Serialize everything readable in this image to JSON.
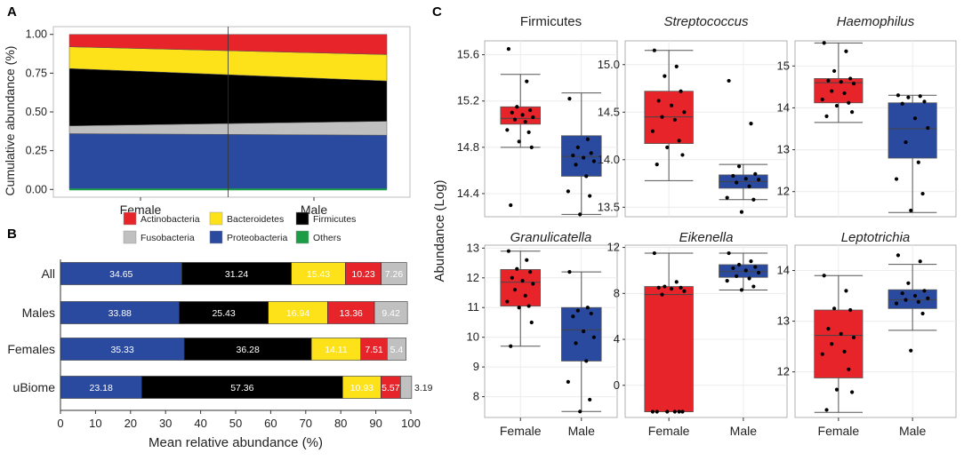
{
  "colors": {
    "actinobacteria": "#e8242b",
    "bacteroidetes": "#fde21a",
    "firmicutes": "#000000",
    "fusobacteria": "#c0c0c0",
    "proteobacteria": "#2a4aa0",
    "others": "#1c9c46",
    "female": "#e8242b",
    "male": "#2a4aa0"
  },
  "chart_data": [
    {
      "panel": "A",
      "type": "area",
      "panel_label": "A",
      "ylabel": "Cumulative abundance (%)",
      "xlabel": "",
      "categories": [
        "Female",
        "Male"
      ],
      "ylim": [
        -0.05,
        1.05
      ],
      "yticks": [
        "0.00",
        "0.25",
        "0.50",
        "0.75",
        "1.00"
      ],
      "ytick_values": [
        0,
        0.25,
        0.5,
        0.75,
        1.0
      ],
      "series": [
        {
          "name": "Others",
          "color_key": "others",
          "values": [
            0.0,
            0.0
          ]
        },
        {
          "name": "Proteobacteria",
          "color_key": "proteobacteria",
          "values": [
            0.36,
            0.35
          ]
        },
        {
          "name": "Fusobacteria",
          "color_key": "fusobacteria",
          "values": [
            0.05,
            0.09
          ]
        },
        {
          "name": "Firmicutes",
          "color_key": "firmicutes",
          "values": [
            0.37,
            0.26
          ]
        },
        {
          "name": "Bacteroidetes",
          "color_key": "bacteroidetes",
          "values": [
            0.14,
            0.17
          ]
        },
        {
          "name": "Actinobacteria",
          "color_key": "actinobacteria",
          "values": [
            0.08,
            0.13
          ]
        }
      ]
    },
    {
      "panel": "B",
      "type": "bar",
      "orientation": "horizontal-stacked",
      "panel_label": "B",
      "xlabel": "Mean relative abundance (%)",
      "xlim": [
        0,
        100
      ],
      "xticks": [
        "0",
        "10",
        "20",
        "30",
        "40",
        "50",
        "60",
        "70",
        "80",
        "90",
        "100"
      ],
      "legend": [
        {
          "label": "Actinobacteria",
          "color_key": "actinobacteria"
        },
        {
          "label": "Bacteroidetes",
          "color_key": "bacteroidetes"
        },
        {
          "label": "Firmicutes",
          "color_key": "firmicutes"
        },
        {
          "label": "Fusobacteria",
          "color_key": "fusobacteria"
        },
        {
          "label": "Proteobacteria",
          "color_key": "proteobacteria"
        },
        {
          "label": "Others",
          "color_key": "others"
        }
      ],
      "stack_order": [
        "proteobacteria",
        "firmicutes",
        "bacteroidetes",
        "actinobacteria",
        "fusobacteria"
      ],
      "rows": [
        {
          "category": "All",
          "values": [
            34.65,
            31.24,
            15.43,
            10.23,
            7.26
          ],
          "labels": [
            "34.65",
            "31.24",
            "15.43",
            "10.23",
            "7.26"
          ]
        },
        {
          "category": "Males",
          "values": [
            33.88,
            25.43,
            16.94,
            13.36,
            9.42
          ],
          "labels": [
            "33.88",
            "25.43",
            "16.94",
            "13.36",
            "9.42"
          ]
        },
        {
          "category": "Females",
          "values": [
            35.33,
            36.28,
            14.11,
            7.51,
            5.4
          ],
          "labels": [
            "35.33",
            "36.28",
            "14.11",
            "7.51",
            "5.4"
          ]
        },
        {
          "category": "uBiome",
          "values": [
            23.18,
            57.36,
            10.93,
            5.57,
            3.19
          ],
          "labels": [
            "23.18",
            "57.36",
            "10.93",
            "5.57",
            "3.19"
          ]
        }
      ]
    },
    {
      "panel": "C",
      "type": "boxplot",
      "panel_label": "C",
      "ylabel": "Abundance (Log)",
      "groups": [
        "Female",
        "Male"
      ],
      "facets": [
        {
          "title": "Firmicutes",
          "italic": false,
          "ylim": [
            14.2,
            15.72
          ],
          "yticks": [
            14.4,
            14.8,
            15.2,
            15.6
          ],
          "ytick_labels": [
            "14.4",
            "14.8",
            "15.2",
            "15.6"
          ],
          "boxes": [
            {
              "group": "Female",
              "color_key": "female",
              "min": 14.8,
              "q1": 15.0,
              "median": 15.05,
              "q3": 15.15,
              "max": 15.43
            },
            {
              "group": "Male",
              "color_key": "male",
              "min": 14.22,
              "q1": 14.55,
              "median": 14.72,
              "q3": 14.9,
              "max": 15.27
            }
          ],
          "points": [
            {
              "group": "Female",
              "values": [
                15.65,
                15.37,
                15.15,
                15.12,
                15.1,
                15.08,
                15.06,
                15.04,
                15.02,
                14.95,
                14.93,
                14.85,
                14.8,
                14.3
              ]
            },
            {
              "group": "Male",
              "values": [
                15.22,
                14.87,
                14.8,
                14.75,
                14.73,
                14.71,
                14.68,
                14.65,
                14.55,
                14.42,
                14.38,
                14.22
              ]
            }
          ]
        },
        {
          "title": "Streptococcus",
          "italic": true,
          "ylim": [
            13.4,
            15.25
          ],
          "yticks": [
            13.5,
            14.0,
            14.5,
            15.0
          ],
          "ytick_labels": [
            "13.5",
            "14.0",
            "14.5",
            "15.0"
          ],
          "boxes": [
            {
              "group": "Female",
              "color_key": "female",
              "min": 13.78,
              "q1": 14.17,
              "median": 14.45,
              "q3": 14.72,
              "max": 15.15
            },
            {
              "group": "Male",
              "color_key": "male",
              "min": 13.58,
              "q1": 13.7,
              "median": 13.77,
              "q3": 13.84,
              "max": 13.95
            }
          ],
          "points": [
            {
              "group": "Female",
              "values": [
                15.15,
                14.98,
                14.88,
                14.72,
                14.62,
                14.57,
                14.5,
                14.45,
                14.42,
                14.3,
                14.2,
                14.13,
                14.05,
                13.95
              ]
            },
            {
              "group": "Male",
              "values": [
                14.83,
                14.38,
                13.93,
                13.85,
                13.83,
                13.8,
                13.79,
                13.76,
                13.72,
                13.6,
                13.58,
                13.45
              ]
            }
          ]
        },
        {
          "title": "Haemophilus",
          "italic": true,
          "ylim": [
            11.4,
            15.6
          ],
          "yticks": [
            12,
            13,
            14,
            15
          ],
          "ytick_labels": [
            "12",
            "13",
            "14",
            "15"
          ],
          "boxes": [
            {
              "group": "Female",
              "color_key": "female",
              "min": 13.65,
              "q1": 14.12,
              "median": 14.6,
              "q3": 14.7,
              "max": 15.55
            },
            {
              "group": "Male",
              "color_key": "male",
              "min": 11.5,
              "q1": 12.8,
              "median": 13.5,
              "q3": 14.12,
              "max": 14.3
            }
          ],
          "points": [
            {
              "group": "Female",
              "values": [
                15.55,
                15.35,
                14.88,
                14.7,
                14.65,
                14.62,
                14.58,
                14.4,
                14.35,
                14.2,
                14.12,
                14.05,
                13.9,
                13.8
              ]
            },
            {
              "group": "Male",
              "values": [
                14.3,
                14.28,
                14.25,
                14.15,
                14.1,
                13.75,
                13.52,
                13.18,
                12.7,
                12.3,
                11.95,
                11.55
              ]
            }
          ]
        },
        {
          "title": "Granulicatella",
          "italic": true,
          "ylim": [
            7.3,
            13.1
          ],
          "yticks": [
            8,
            9,
            10,
            11,
            12,
            13
          ],
          "ytick_labels": [
            "8",
            "9",
            "10",
            "11",
            "12",
            "13"
          ],
          "boxes": [
            {
              "group": "Female",
              "color_key": "female",
              "min": 9.7,
              "q1": 11.05,
              "median": 11.85,
              "q3": 12.28,
              "max": 12.9
            },
            {
              "group": "Male",
              "color_key": "male",
              "min": 7.5,
              "q1": 9.2,
              "median": 10.25,
              "q3": 11.0,
              "max": 12.2
            }
          ],
          "points": [
            {
              "group": "Female",
              "values": [
                12.9,
                12.6,
                12.3,
                12.2,
                12.0,
                11.9,
                11.8,
                11.6,
                11.4,
                11.2,
                11.05,
                11.0,
                10.5,
                9.7
              ]
            },
            {
              "group": "Male",
              "values": [
                12.2,
                11.0,
                10.9,
                10.8,
                10.7,
                10.2,
                10.0,
                9.8,
                9.2,
                8.5,
                7.9,
                7.5
              ]
            }
          ]
        },
        {
          "title": "Eikenella",
          "italic": true,
          "ylim": [
            -2.8,
            12.2
          ],
          "yticks": [
            0,
            4,
            8,
            12
          ],
          "ytick_labels": [
            "0",
            "4",
            "8",
            "12"
          ],
          "boxes": [
            {
              "group": "Female",
              "color_key": "female",
              "min": -2.3,
              "q1": -2.3,
              "median": 7.9,
              "q3": 8.6,
              "max": 11.5
            },
            {
              "group": "Male",
              "color_key": "male",
              "min": 8.3,
              "q1": 9.4,
              "median": 9.9,
              "q3": 10.5,
              "max": 11.5
            }
          ],
          "points": [
            {
              "group": "Female",
              "values": [
                11.5,
                9.0,
                8.6,
                8.5,
                8.5,
                8.4,
                8.2,
                7.9,
                -2.3,
                -2.3,
                -2.3,
                -2.3,
                -2.3,
                -2.3
              ]
            },
            {
              "group": "Male",
              "values": [
                11.5,
                10.8,
                10.5,
                10.3,
                10.2,
                10.0,
                9.8,
                9.5,
                9.3,
                9.1,
                8.6,
                8.3
              ]
            }
          ]
        },
        {
          "title": "Leptotrichia",
          "italic": true,
          "ylim": [
            11.1,
            14.5
          ],
          "yticks": [
            12,
            13,
            14
          ],
          "ytick_labels": [
            "12",
            "13",
            "14"
          ],
          "boxes": [
            {
              "group": "Female",
              "color_key": "female",
              "min": 11.2,
              "q1": 11.88,
              "median": 12.72,
              "q3": 13.22,
              "max": 13.9
            },
            {
              "group": "Male",
              "color_key": "male",
              "min": 12.82,
              "q1": 13.25,
              "median": 13.42,
              "q3": 13.62,
              "max": 14.12
            }
          ],
          "points": [
            {
              "group": "Female",
              "values": [
                13.9,
                13.6,
                13.25,
                13.22,
                12.85,
                12.75,
                12.68,
                12.55,
                12.4,
                12.35,
                12.05,
                11.65,
                11.6,
                11.25
              ]
            },
            {
              "group": "Male",
              "values": [
                14.3,
                14.18,
                13.75,
                13.6,
                13.55,
                13.5,
                13.45,
                13.42,
                13.38,
                13.35,
                13.15,
                12.42
              ]
            }
          ]
        }
      ]
    }
  ]
}
